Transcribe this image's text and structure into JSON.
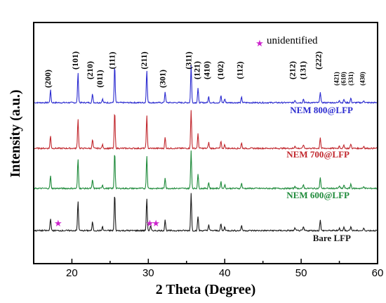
{
  "chart_data": {
    "type": "line",
    "title": "",
    "xlabel": "2 Theta (Degree)",
    "ylabel": "Intensity (a.u.)",
    "xlim": [
      15,
      60
    ],
    "xticks": [
      20,
      30,
      40,
      50,
      60
    ],
    "x_ticklabels": [
      "20",
      "30",
      "40",
      "50",
      "60"
    ],
    "y_ticks_shown": false,
    "grid": false,
    "legend": "labels placed at right end of each trace",
    "series": [
      {
        "name": "NEM 800@LFP",
        "color": "#2b2bd0",
        "peaks": [
          {
            "x": 17.2,
            "h": 0.33
          },
          {
            "x": 20.8,
            "h": 0.78
          },
          {
            "x": 22.7,
            "h": 0.23
          },
          {
            "x": 24.0,
            "h": 0.1
          },
          {
            "x": 25.6,
            "h": 0.98
          },
          {
            "x": 29.8,
            "h": 0.87
          },
          {
            "x": 32.2,
            "h": 0.29
          },
          {
            "x": 35.6,
            "h": 1.0
          },
          {
            "x": 36.5,
            "h": 0.38
          },
          {
            "x": 37.9,
            "h": 0.16
          },
          {
            "x": 39.5,
            "h": 0.18
          },
          {
            "x": 40.0,
            "h": 0.1
          },
          {
            "x": 42.2,
            "h": 0.14
          },
          {
            "x": 49.2,
            "h": 0.07
          },
          {
            "x": 50.3,
            "h": 0.1
          },
          {
            "x": 52.5,
            "h": 0.29
          },
          {
            "x": 55.0,
            "h": 0.07
          },
          {
            "x": 55.6,
            "h": 0.09
          },
          {
            "x": 56.5,
            "h": 0.12
          },
          {
            "x": 58.2,
            "h": 0.06
          }
        ]
      },
      {
        "name": "NEM 700@LFP",
        "color": "#c1272d",
        "peaks": [
          {
            "x": 17.2,
            "h": 0.33
          },
          {
            "x": 20.8,
            "h": 0.78
          },
          {
            "x": 22.7,
            "h": 0.23
          },
          {
            "x": 24.0,
            "h": 0.1
          },
          {
            "x": 25.6,
            "h": 0.98
          },
          {
            "x": 29.8,
            "h": 0.87
          },
          {
            "x": 32.2,
            "h": 0.29
          },
          {
            "x": 35.6,
            "h": 1.0
          },
          {
            "x": 36.5,
            "h": 0.38
          },
          {
            "x": 37.9,
            "h": 0.16
          },
          {
            "x": 39.5,
            "h": 0.18
          },
          {
            "x": 40.0,
            "h": 0.1
          },
          {
            "x": 42.2,
            "h": 0.14
          },
          {
            "x": 49.2,
            "h": 0.07
          },
          {
            "x": 50.3,
            "h": 0.1
          },
          {
            "x": 52.5,
            "h": 0.29
          },
          {
            "x": 55.0,
            "h": 0.07
          },
          {
            "x": 55.6,
            "h": 0.09
          },
          {
            "x": 56.5,
            "h": 0.12
          },
          {
            "x": 58.2,
            "h": 0.06
          }
        ]
      },
      {
        "name": "NEM 600@LFP",
        "color": "#1e8a3a",
        "peaks": [
          {
            "x": 17.2,
            "h": 0.33
          },
          {
            "x": 20.8,
            "h": 0.78
          },
          {
            "x": 22.7,
            "h": 0.23
          },
          {
            "x": 24.0,
            "h": 0.1
          },
          {
            "x": 25.6,
            "h": 0.98
          },
          {
            "x": 29.8,
            "h": 0.87
          },
          {
            "x": 32.2,
            "h": 0.29
          },
          {
            "x": 35.6,
            "h": 1.0
          },
          {
            "x": 36.5,
            "h": 0.38
          },
          {
            "x": 37.9,
            "h": 0.16
          },
          {
            "x": 39.5,
            "h": 0.18
          },
          {
            "x": 40.0,
            "h": 0.1
          },
          {
            "x": 42.2,
            "h": 0.14
          },
          {
            "x": 49.2,
            "h": 0.07
          },
          {
            "x": 50.3,
            "h": 0.1
          },
          {
            "x": 52.5,
            "h": 0.29
          },
          {
            "x": 55.0,
            "h": 0.07
          },
          {
            "x": 55.6,
            "h": 0.09
          },
          {
            "x": 56.5,
            "h": 0.12
          },
          {
            "x": 58.2,
            "h": 0.06
          }
        ]
      },
      {
        "name": "Bare LFP",
        "color": "#1a1a1a",
        "peaks": [
          {
            "x": 17.2,
            "h": 0.33
          },
          {
            "x": 20.8,
            "h": 0.78
          },
          {
            "x": 22.7,
            "h": 0.23
          },
          {
            "x": 24.0,
            "h": 0.1
          },
          {
            "x": 25.6,
            "h": 0.98
          },
          {
            "x": 29.8,
            "h": 0.87
          },
          {
            "x": 30.3,
            "h": 0.12
          },
          {
            "x": 32.2,
            "h": 0.29
          },
          {
            "x": 35.6,
            "h": 1.0
          },
          {
            "x": 36.5,
            "h": 0.38
          },
          {
            "x": 37.9,
            "h": 0.16
          },
          {
            "x": 39.5,
            "h": 0.18
          },
          {
            "x": 40.0,
            "h": 0.1
          },
          {
            "x": 42.2,
            "h": 0.14
          },
          {
            "x": 49.2,
            "h": 0.07
          },
          {
            "x": 50.3,
            "h": 0.1
          },
          {
            "x": 52.5,
            "h": 0.29
          },
          {
            "x": 55.0,
            "h": 0.07
          },
          {
            "x": 55.6,
            "h": 0.09
          },
          {
            "x": 56.5,
            "h": 0.12
          },
          {
            "x": 58.2,
            "h": 0.06
          }
        ]
      }
    ],
    "peak_labels": [
      {
        "x": 17.2,
        "text": "(200)",
        "row": 2
      },
      {
        "x": 20.8,
        "text": "(101)",
        "row": 0
      },
      {
        "x": 22.7,
        "text": "(210)",
        "row": 1
      },
      {
        "x": 24.0,
        "text": "(011)",
        "row": 2
      },
      {
        "x": 25.6,
        "text": "(111)",
        "row": 0
      },
      {
        "x": 29.8,
        "text": "(211)",
        "row": 0
      },
      {
        "x": 32.2,
        "text": "(301)",
        "row": 2
      },
      {
        "x": 35.6,
        "text": "(311)",
        "row": 0
      },
      {
        "x": 36.7,
        "text": "(121)",
        "row": 1
      },
      {
        "x": 38.0,
        "text": "(410)",
        "row": 1
      },
      {
        "x": 39.8,
        "text": "(102)",
        "row": 1
      },
      {
        "x": 42.3,
        "text": "(112)",
        "row": 1
      },
      {
        "x": 49.2,
        "text": "(212)",
        "row": 1
      },
      {
        "x": 50.6,
        "text": "(131)",
        "row": 1
      },
      {
        "x": 52.6,
        "text": "(222)",
        "row": 0
      },
      {
        "x": 54.9,
        "text": "(421)",
        "row": 1
      },
      {
        "x": 55.8,
        "text": "(610)",
        "row": 1
      },
      {
        "x": 56.8,
        "text": "(331)",
        "row": 1
      },
      {
        "x": 58.3,
        "text": "(430)",
        "row": 1
      }
    ],
    "unidentified_markers": [
      {
        "x": 18.2
      },
      {
        "x": 30.2
      },
      {
        "x": 31.0
      }
    ],
    "annotation": {
      "symbol": "★",
      "text": "unidentified",
      "color": "#cc22cc"
    }
  }
}
